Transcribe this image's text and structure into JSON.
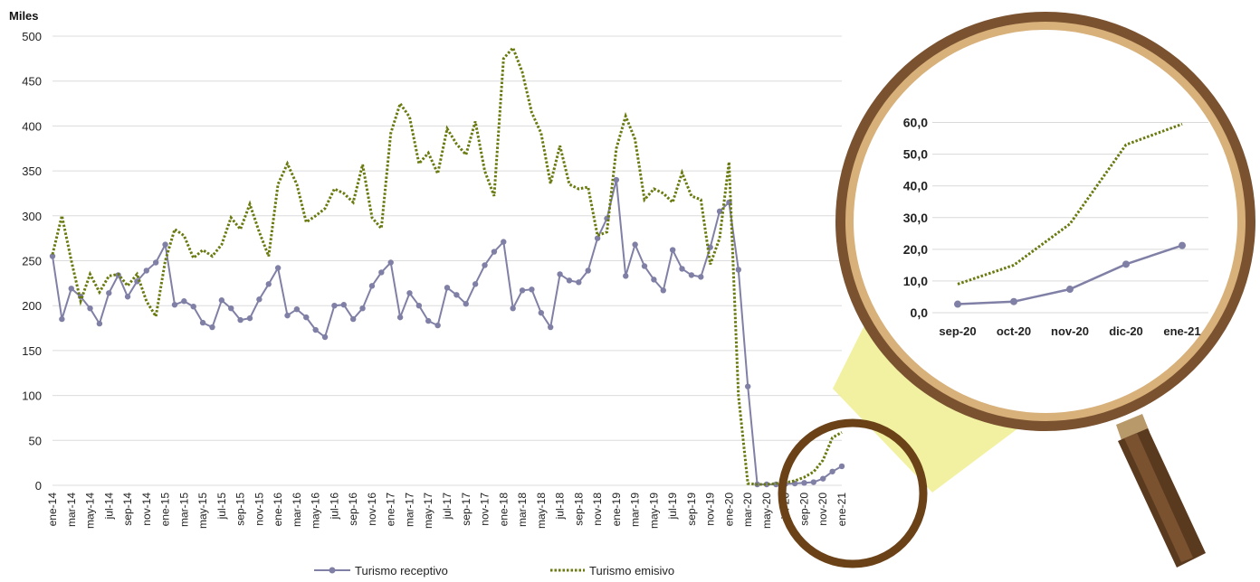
{
  "chart_data": [
    {
      "type": "line",
      "ylabel": "Miles",
      "ylim": [
        0,
        500
      ],
      "yticks": [
        0,
        50,
        100,
        150,
        200,
        250,
        300,
        350,
        400,
        450,
        500
      ],
      "grid": true,
      "legend_position": "bottom",
      "x": [
        "ene-14",
        "feb-14",
        "mar-14",
        "abr-14",
        "may-14",
        "jun-14",
        "jul-14",
        "ago-14",
        "sep-14",
        "oct-14",
        "nov-14",
        "dic-14",
        "ene-15",
        "feb-15",
        "mar-15",
        "abr-15",
        "may-15",
        "jun-15",
        "jul-15",
        "ago-15",
        "sep-15",
        "oct-15",
        "nov-15",
        "dic-15",
        "ene-16",
        "feb-16",
        "mar-16",
        "abr-16",
        "may-16",
        "jun-16",
        "jul-16",
        "ago-16",
        "sep-16",
        "oct-16",
        "nov-16",
        "dic-16",
        "ene-17",
        "feb-17",
        "mar-17",
        "abr-17",
        "may-17",
        "jun-17",
        "jul-17",
        "ago-17",
        "sep-17",
        "oct-17",
        "nov-17",
        "dic-17",
        "ene-18",
        "feb-18",
        "mar-18",
        "abr-18",
        "may-18",
        "jun-18",
        "jul-18",
        "ago-18",
        "sep-18",
        "oct-18",
        "nov-18",
        "dic-18",
        "ene-19",
        "feb-19",
        "mar-19",
        "abr-19",
        "may-19",
        "jun-19",
        "jul-19",
        "ago-19",
        "sep-19",
        "oct-19",
        "nov-19",
        "dic-19",
        "ene-20",
        "feb-20",
        "mar-20",
        "abr-20",
        "may-20",
        "jun-20",
        "jul-20",
        "ago-20",
        "sep-20",
        "oct-20",
        "nov-20",
        "dic-20",
        "ene-21"
      ],
      "xtick_labels": [
        "ene-14",
        "mar-14",
        "may-14",
        "jul-14",
        "sep-14",
        "nov-14",
        "ene-15",
        "mar-15",
        "may-15",
        "jul-15",
        "sep-15",
        "nov-15",
        "ene-16",
        "mar-16",
        "may-16",
        "jul-16",
        "sep-16",
        "nov-16",
        "ene-17",
        "mar-17",
        "may-17",
        "jul-17",
        "sep-17",
        "nov-17",
        "ene-18",
        "mar-18",
        "may-18",
        "jul-18",
        "sep-18",
        "nov-18",
        "ene-19",
        "mar-19",
        "may-19",
        "jul-19",
        "sep-19",
        "nov-19",
        "ene-20",
        "mar-20",
        "may-20",
        "jul-20",
        "sep-20",
        "nov-20",
        "ene-21"
      ],
      "series": [
        {
          "name": "Turismo receptivo",
          "color": "#8080a6",
          "style": "solid-markers",
          "values": [
            255,
            185,
            219,
            210,
            197,
            180,
            214,
            234,
            210,
            227,
            239,
            248,
            268,
            201,
            205,
            199,
            181,
            176,
            206,
            197,
            184,
            186,
            207,
            224,
            242,
            189,
            196,
            187,
            173,
            165,
            200,
            201,
            185,
            197,
            222,
            237,
            248,
            187,
            214,
            200,
            183,
            178,
            220,
            212,
            202,
            224,
            245,
            260,
            271,
            197,
            217,
            218,
            192,
            176,
            235,
            228,
            226,
            239,
            275,
            297,
            340,
            233,
            268,
            244,
            229,
            217,
            262,
            241,
            234,
            232,
            265,
            305,
            315,
            240,
            110,
            1,
            1,
            1,
            1.5,
            2,
            2.7,
            3.5,
            7.4,
            15.3,
            21.2
          ]
        },
        {
          "name": "Turismo emisivo",
          "color": "#6b7a10",
          "style": "dotted",
          "values": [
            257,
            300,
            250,
            205,
            235,
            215,
            233,
            235,
            222,
            235,
            205,
            188,
            250,
            285,
            278,
            253,
            262,
            255,
            268,
            298,
            285,
            313,
            282,
            255,
            335,
            358,
            335,
            293,
            300,
            308,
            330,
            325,
            315,
            357,
            298,
            286,
            392,
            425,
            410,
            358,
            370,
            347,
            397,
            380,
            368,
            405,
            350,
            322,
            475,
            487,
            460,
            415,
            392,
            336,
            378,
            335,
            330,
            332,
            278,
            282,
            375,
            411,
            385,
            318,
            330,
            325,
            315,
            348,
            322,
            318,
            246,
            275,
            360,
            100,
            2,
            1,
            1,
            2,
            3,
            5,
            9,
            15,
            28,
            53,
            59
          ]
        }
      ]
    },
    {
      "type": "line",
      "ylim": [
        0,
        65
      ],
      "yticks": [
        "0,0",
        "10,0",
        "20,0",
        "30,0",
        "40,0",
        "50,0",
        "60,0"
      ],
      "categories": [
        "sep-20",
        "oct-20",
        "nov-20",
        "dic-20",
        "ene-21"
      ],
      "series": [
        {
          "name": "Turismo receptivo",
          "color": "#8080a6",
          "values": [
            2.7,
            3.5,
            7.4,
            15.3,
            21.2
          ]
        },
        {
          "name": "Turismo emisivo",
          "color": "#6b7a10",
          "values": [
            9.0,
            15.0,
            28.0,
            53.0,
            59.5
          ]
        }
      ]
    }
  ],
  "legend": {
    "items": [
      {
        "label": "Turismo receptivo"
      },
      {
        "label": "Turismo emisivo"
      }
    ]
  },
  "colors": {
    "grid": "#dcdcdc",
    "magnifier_frame": "#7a5230",
    "magnifier_rim": "#d8b07a",
    "handle": "#6b4a2b",
    "lens_beam": "#f0ee90"
  }
}
